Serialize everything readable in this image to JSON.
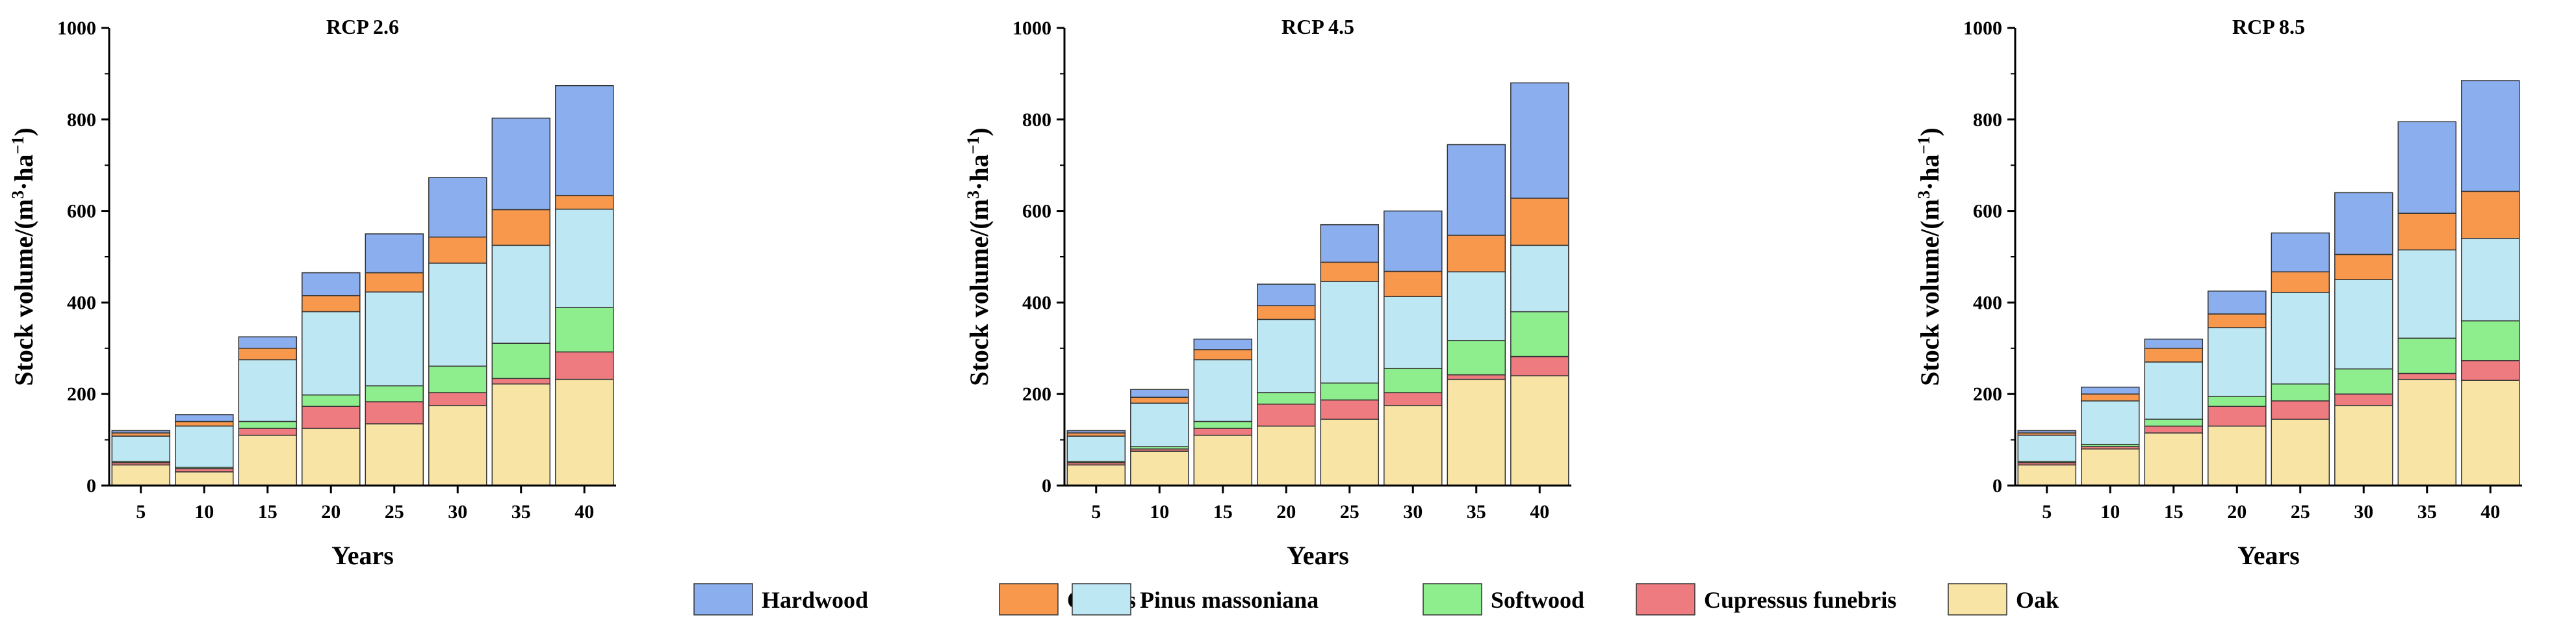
{
  "chart_data": [
    {
      "type": "bar",
      "stacked": true,
      "title": "RCP 2.6",
      "xlabel": "Years",
      "ylabel": "Stock volume/(m3·ha−1)",
      "ylim": [
        0,
        1000
      ],
      "yticks": [
        0,
        200,
        400,
        600,
        800,
        1000
      ],
      "categories": [
        "5",
        "10",
        "15",
        "20",
        "25",
        "30",
        "35",
        "40"
      ],
      "series": [
        {
          "name": "Oak",
          "values": [
            45,
            30,
            110,
            125,
            135,
            175,
            222,
            232
          ]
        },
        {
          "name": "Cupressus funebris",
          "values": [
            5,
            7,
            15,
            48,
            48,
            28,
            12,
            60
          ]
        },
        {
          "name": "Softwood",
          "values": [
            3,
            3,
            15,
            25,
            35,
            58,
            77,
            97
          ]
        },
        {
          "name": "Pinus massoniana",
          "values": [
            55,
            90,
            135,
            182,
            205,
            225,
            214,
            215
          ]
        },
        {
          "name": "Others",
          "values": [
            7,
            10,
            25,
            35,
            42,
            57,
            78,
            30
          ]
        },
        {
          "name": "Hardwood",
          "values": [
            5,
            15,
            25,
            50,
            85,
            130,
            200,
            240
          ]
        }
      ]
    },
    {
      "type": "bar",
      "stacked": true,
      "title": "RCP 4.5",
      "xlabel": "Years",
      "ylabel": "Stock volume/(m3·ha−1)",
      "ylim": [
        0,
        1000
      ],
      "yticks": [
        0,
        200,
        400,
        600,
        800,
        1000
      ],
      "categories": [
        "5",
        "10",
        "15",
        "20",
        "25",
        "30",
        "35",
        "40"
      ],
      "series": [
        {
          "name": "Oak",
          "values": [
            45,
            75,
            110,
            130,
            145,
            175,
            232,
            240
          ]
        },
        {
          "name": "Cupressus funebris",
          "values": [
            5,
            5,
            15,
            48,
            42,
            28,
            10,
            42
          ]
        },
        {
          "name": "Softwood",
          "values": [
            3,
            5,
            15,
            25,
            37,
            53,
            75,
            98
          ]
        },
        {
          "name": "Pinus massoniana",
          "values": [
            55,
            95,
            135,
            160,
            222,
            157,
            150,
            145
          ]
        },
        {
          "name": "Others",
          "values": [
            7,
            13,
            22,
            30,
            42,
            55,
            80,
            103
          ]
        },
        {
          "name": "Hardwood",
          "values": [
            5,
            17,
            23,
            47,
            82,
            132,
            198,
            252
          ]
        }
      ]
    },
    {
      "type": "bar",
      "stacked": true,
      "title": "RCP 8.5",
      "xlabel": "Years",
      "ylabel": "Stock volume/(m3·ha−1)",
      "ylim": [
        0,
        1000
      ],
      "yticks": [
        0,
        200,
        400,
        600,
        800,
        1000
      ],
      "categories": [
        "5",
        "10",
        "15",
        "20",
        "25",
        "30",
        "35",
        "40"
      ],
      "series": [
        {
          "name": "Oak",
          "values": [
            45,
            80,
            115,
            130,
            145,
            175,
            232,
            230
          ]
        },
        {
          "name": "Cupressus funebris",
          "values": [
            5,
            5,
            15,
            43,
            40,
            25,
            13,
            43
          ]
        },
        {
          "name": "Softwood",
          "values": [
            3,
            5,
            15,
            22,
            37,
            55,
            77,
            87
          ]
        },
        {
          "name": "Pinus massoniana",
          "values": [
            57,
            95,
            125,
            150,
            200,
            195,
            193,
            180
          ]
        },
        {
          "name": "Others",
          "values": [
            5,
            15,
            30,
            30,
            45,
            55,
            80,
            103
          ]
        },
        {
          "name": "Hardwood",
          "values": [
            5,
            15,
            20,
            50,
            85,
            135,
            200,
            242
          ]
        }
      ]
    }
  ],
  "legend": [
    {
      "name": "Hardwood",
      "color": "#8AAEEE"
    },
    {
      "name": "Others",
      "color": "#F8984D"
    },
    {
      "name": "Pinus massoniana",
      "color": "#BEE7F4"
    },
    {
      "name": "Softwood",
      "color": "#8EEE8E"
    },
    {
      "name": "Cupressus funebris",
      "color": "#EE7B7F"
    },
    {
      "name": "Oak",
      "color": "#F8E5A6"
    }
  ],
  "colors": {
    "Oak": "#F8E5A6",
    "Cupressus funebris": "#EE7B7F",
    "Softwood": "#8EEE8E",
    "Pinus massoniana": "#BEE7F4",
    "Others": "#F8984D",
    "Hardwood": "#8AAEEE",
    "axis": "#000000",
    "bar_stroke": "#333333"
  }
}
